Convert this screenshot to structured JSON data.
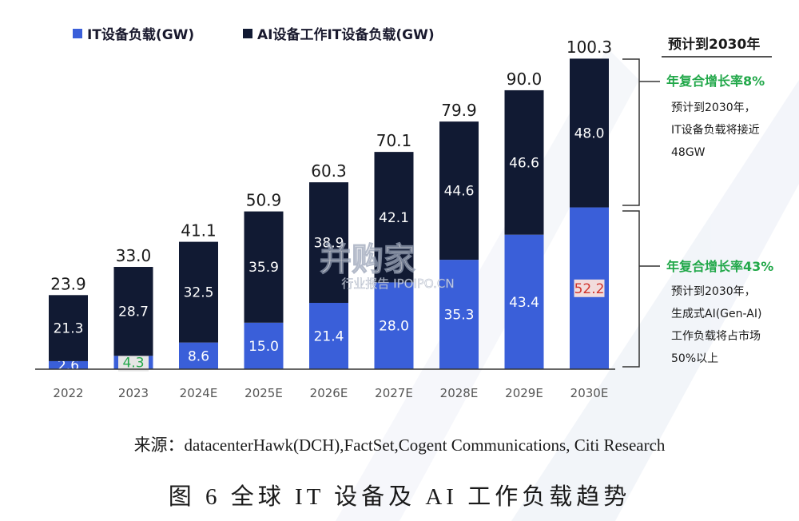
{
  "chart_data": {
    "type": "bar",
    "stacked": true,
    "categories": [
      "2022",
      "2023",
      "2024E",
      "2025E",
      "2026E",
      "2027E",
      "2028E",
      "2029E",
      "2030E"
    ],
    "series": [
      {
        "name": "IT设备负载(GW)",
        "values": [
          2.6,
          4.3,
          8.6,
          15.0,
          21.4,
          28.0,
          35.3,
          43.4,
          52.2
        ],
        "color": "#3a5fd9"
      },
      {
        "name": "AI设备工作IT设备负载(GW)",
        "values": [
          21.3,
          28.7,
          32.5,
          35.9,
          38.9,
          42.1,
          44.6,
          46.6,
          48.0
        ],
        "color": "#111a33"
      }
    ],
    "totals": [
      23.9,
      33.0,
      41.1,
      50.9,
      60.3,
      70.1,
      79.9,
      90.0,
      100.3
    ],
    "legend_position": "top-left",
    "highlighted_labels": [
      {
        "category": "2023",
        "series": "IT设备负载(GW)",
        "text_color": "#22a84a",
        "box_color": "#e6e6e6"
      },
      {
        "category": "2030E",
        "series": "IT设备负载(GW)",
        "text_color": "#d0342c",
        "box_color": "#f2dcdc"
      }
    ],
    "ylim": [
      0,
      100.3
    ],
    "grid": false
  },
  "annotation": {
    "title": "预计到2030年",
    "groups": [
      {
        "rate": "年复合增长率8%",
        "lines": [
          "预计到2030年，",
          "IT设备负载将接近",
          "48GW"
        ]
      },
      {
        "rate": "年复合增长率43%",
        "lines": [
          "预计到2030年，",
          "生成式AI(Gen-AI)",
          "工作负载将占市场",
          "50%以上"
        ]
      }
    ]
  },
  "watermark": {
    "brand": "并购家",
    "sub": "行业报告 IPOIPO.CN"
  },
  "source": "来源：datacenterHawk(DCH),FactSet,Cogent Communications, Citi Research",
  "caption": "图 6 全球 IT 设备及 AI 工作负载趋势"
}
